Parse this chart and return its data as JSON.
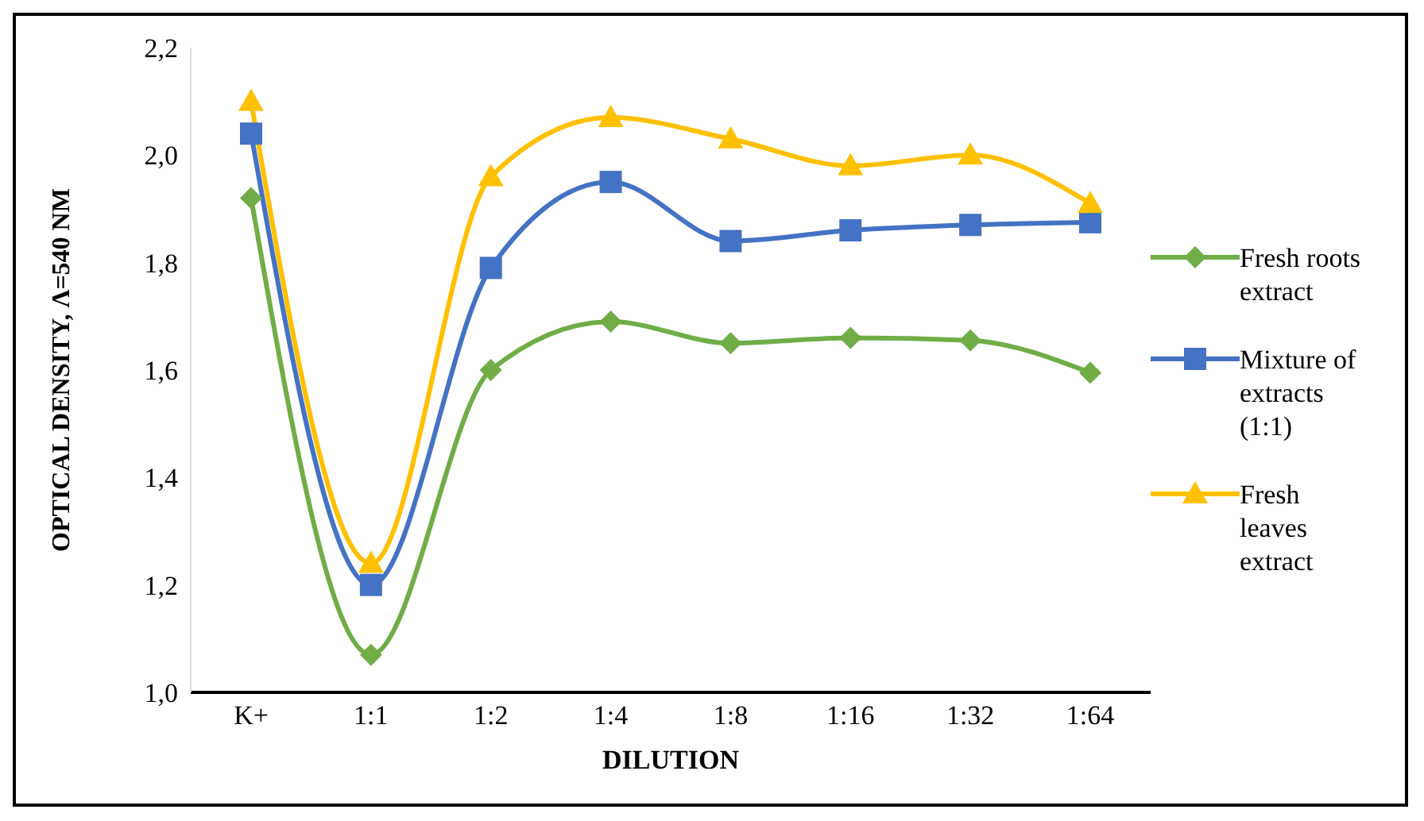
{
  "chart_data": {
    "type": "line",
    "xlabel": "DILUTION",
    "ylabel": "OPTICAL DENSITY, Λ=540 NM",
    "categories": [
      "K+",
      "1:1",
      "1:2",
      "1:4",
      "1:8",
      "1:16",
      "1:32",
      "1:64"
    ],
    "series": [
      {
        "name": "Fresh roots extract",
        "color": "#70ad47",
        "marker": "diamond",
        "values": [
          1.92,
          1.07,
          1.6,
          1.69,
          1.65,
          1.66,
          1.655,
          1.595
        ]
      },
      {
        "name": "Mixture of extracts (1:1)",
        "color": "#4472c4",
        "marker": "square",
        "values": [
          2.04,
          1.2,
          1.79,
          1.95,
          1.84,
          1.86,
          1.87,
          1.875
        ]
      },
      {
        "name": "Fresh leaves extract",
        "color": "#ffc000",
        "marker": "triangle",
        "values": [
          2.1,
          1.24,
          1.96,
          2.07,
          2.03,
          1.98,
          2.0,
          1.91
        ]
      }
    ],
    "ylim": [
      1.0,
      2.2
    ],
    "yticks": [
      {
        "value": 1.0,
        "label": "1,0"
      },
      {
        "value": 1.2,
        "label": "1,2"
      },
      {
        "value": 1.4,
        "label": "1,4"
      },
      {
        "value": 1.6,
        "label": "1,6"
      },
      {
        "value": 1.8,
        "label": "1,8"
      },
      {
        "value": 2.0,
        "label": "2,0"
      },
      {
        "value": 2.2,
        "label": "2,2"
      }
    ],
    "grid": false,
    "legend": "right",
    "line_style": "solid"
  }
}
